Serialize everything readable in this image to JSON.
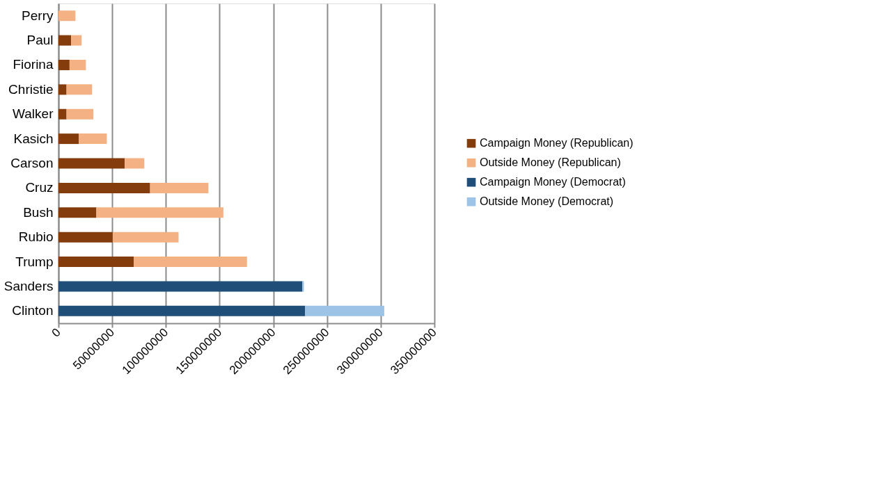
{
  "chart_data": {
    "type": "bar",
    "orientation": "horizontal",
    "stacked": true,
    "categories": [
      "Perry",
      "Paul",
      "Fiorina",
      "Christie",
      "Walker",
      "Kasich",
      "Carson",
      "Cruz",
      "Bush",
      "Rubio",
      "Trump",
      "Sanders",
      "Clinton"
    ],
    "series": [
      {
        "name": "Campaign Money (Republican)",
        "color": "#843c0c",
        "values": [
          0,
          11700000,
          10300000,
          7500000,
          7500000,
          18800000,
          61700000,
          85300000,
          35300000,
          50500000,
          70000000,
          null,
          null
        ]
      },
      {
        "name": "Outside Money (Republican)",
        "color": "#f4b183",
        "values": [
          15800000,
          9800000,
          15200000,
          23800000,
          25000000,
          26200000,
          18200000,
          54300000,
          118200000,
          61300000,
          105500000,
          null,
          null
        ]
      },
      {
        "name": "Campaign Money (Democrat)",
        "color": "#1f4e79",
        "values": [
          null,
          null,
          null,
          null,
          null,
          null,
          null,
          null,
          null,
          null,
          null,
          227100000,
          229700000
        ]
      },
      {
        "name": "Outside Money (Democrat)",
        "color": "#9dc3e6",
        "values": [
          null,
          null,
          null,
          null,
          null,
          null,
          null,
          null,
          null,
          null,
          null,
          1400000,
          73600000
        ]
      }
    ],
    "xlim": [
      0,
      350000000
    ],
    "xticks": [
      0,
      50000000,
      100000000,
      150000000,
      200000000,
      250000000,
      300000000,
      350000000
    ],
    "grid": "x",
    "legend": "right"
  }
}
